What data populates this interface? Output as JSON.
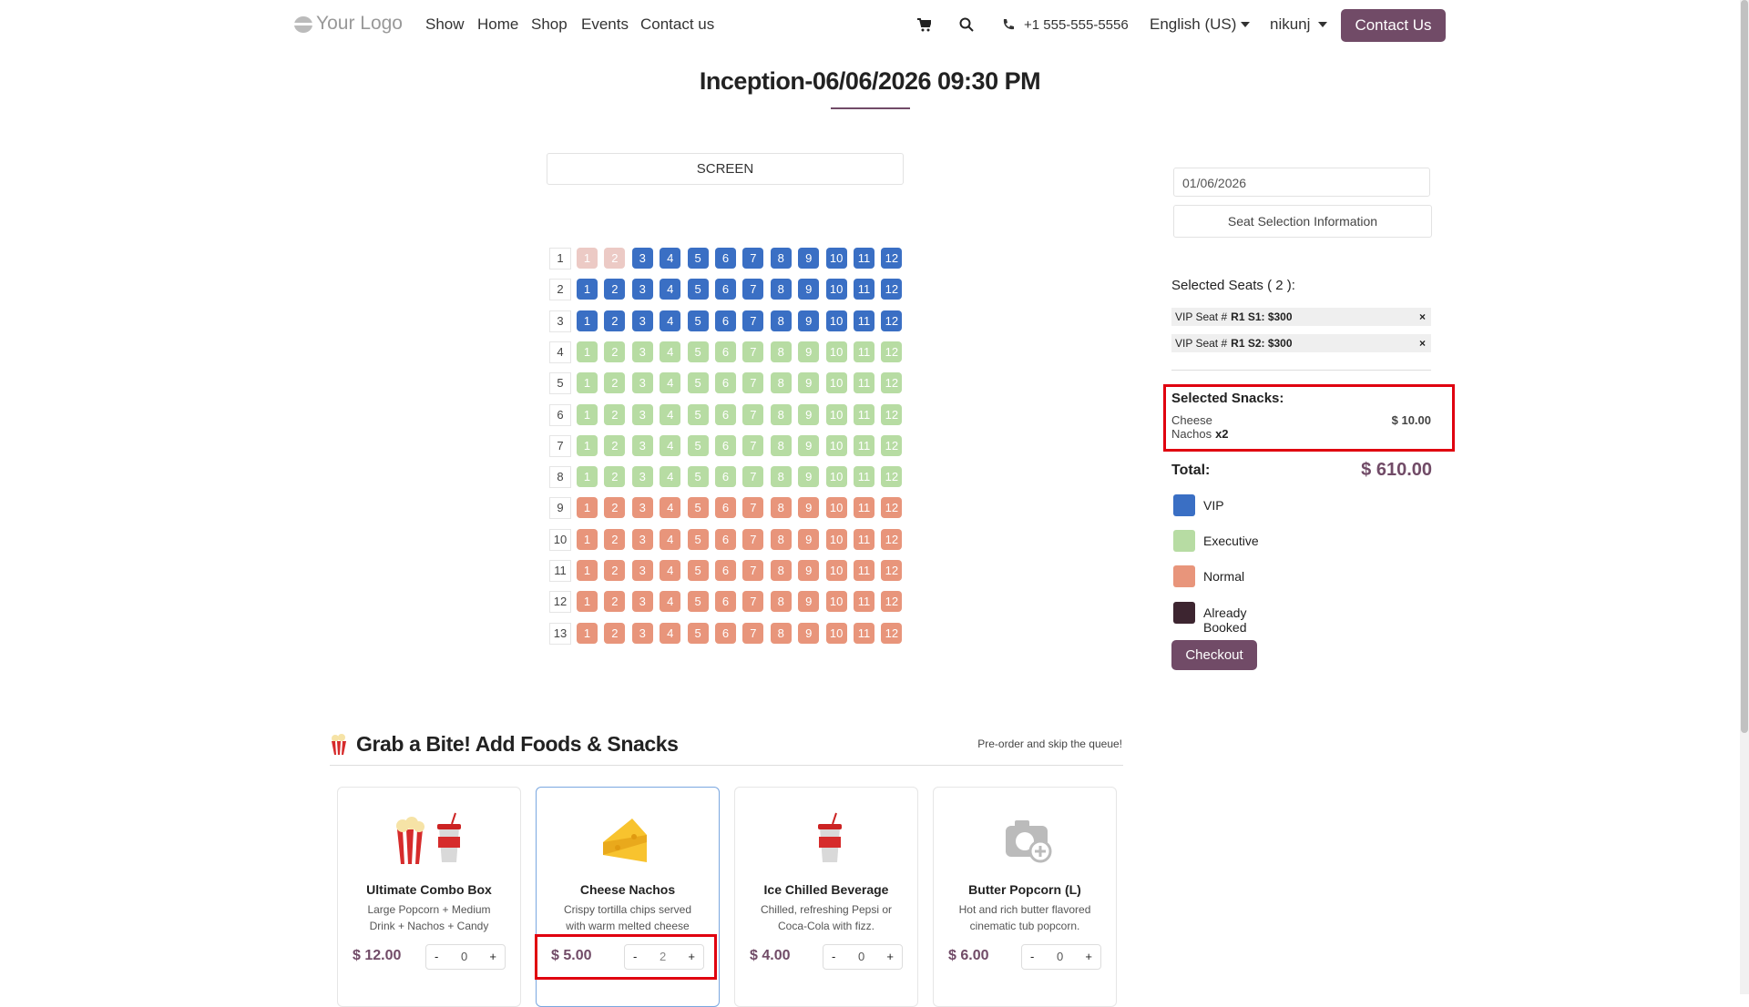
{
  "nav": {
    "logo": "Your Logo",
    "links": [
      "Show",
      "Home",
      "Shop",
      "Events",
      "Contact us"
    ],
    "phone": "+1 555-555-5556",
    "language": "English (US)",
    "user": "nikunj",
    "cta": "Contact Us"
  },
  "title": "Inception-06/06/2026 09:30 PM",
  "screen_label": "SCREEN",
  "seat_rows": [
    {
      "label": "1",
      "color": "#3a6fc4",
      "seats": [
        {
          "label": "1",
          "color": "#eccac5"
        },
        {
          "label": "2",
          "color": "#eccac5"
        },
        "3",
        "4",
        "5",
        "6",
        "7",
        "8",
        "9",
        "10",
        "11",
        "12"
      ]
    },
    {
      "label": "2",
      "color": "#3a6fc4",
      "seats": [
        "1",
        "2",
        "3",
        "4",
        "5",
        "6",
        "7",
        "8",
        "9",
        "10",
        "11",
        "12"
      ]
    },
    {
      "label": "3",
      "color": "#3a6fc4",
      "seats": [
        "1",
        "2",
        "3",
        "4",
        "5",
        "6",
        "7",
        "8",
        "9",
        "10",
        "11",
        "12"
      ]
    },
    {
      "label": "4",
      "color": "#b7dca3",
      "seats": [
        "1",
        "2",
        "3",
        "4",
        "5",
        "6",
        "7",
        "8",
        "9",
        "10",
        "11",
        "12"
      ]
    },
    {
      "label": "5",
      "color": "#b7dca3",
      "seats": [
        "1",
        "2",
        "3",
        "4",
        "5",
        "6",
        "7",
        "8",
        "9",
        "10",
        "11",
        "12"
      ]
    },
    {
      "label": "6",
      "color": "#b7dca3",
      "seats": [
        "1",
        "2",
        "3",
        "4",
        "5",
        "6",
        "7",
        "8",
        "9",
        "10",
        "11",
        "12"
      ]
    },
    {
      "label": "7",
      "color": "#b7dca3",
      "seats": [
        "1",
        "2",
        "3",
        "4",
        "5",
        "6",
        "7",
        "8",
        "9",
        "10",
        "11",
        "12"
      ]
    },
    {
      "label": "8",
      "color": "#b7dca3",
      "seats": [
        "1",
        "2",
        "3",
        "4",
        "5",
        "6",
        "7",
        "8",
        "9",
        "10",
        "11",
        "12"
      ]
    },
    {
      "label": "9",
      "color": "#e8957b",
      "seats": [
        "1",
        "2",
        "3",
        "4",
        "5",
        "6",
        "7",
        "8",
        "9",
        "10",
        "11",
        "12"
      ]
    },
    {
      "label": "10",
      "color": "#e8957b",
      "seats": [
        "1",
        "2",
        "3",
        "4",
        "5",
        "6",
        "7",
        "8",
        "9",
        "10",
        "11",
        "12"
      ]
    },
    {
      "label": "11",
      "color": "#e8957b",
      "seats": [
        "1",
        "2",
        "3",
        "4",
        "5",
        "6",
        "7",
        "8",
        "9",
        "10",
        "11",
        "12"
      ]
    },
    {
      "label": "12",
      "color": "#e8957b",
      "seats": [
        "1",
        "2",
        "3",
        "4",
        "5",
        "6",
        "7",
        "8",
        "9",
        "10",
        "11",
        "12"
      ]
    },
    {
      "label": "13",
      "color": "#e8957b",
      "seats": [
        "1",
        "2",
        "3",
        "4",
        "5",
        "6",
        "7",
        "8",
        "9",
        "10",
        "11",
        "12"
      ]
    }
  ],
  "panel": {
    "date": "01/06/2026",
    "info": "Seat Selection Information",
    "selected_seats_label": "Selected Seats ( 2 ):",
    "selected_seats": [
      {
        "prefix": "VIP Seat #",
        "seat": "R1 S1: $300"
      },
      {
        "prefix": "VIP Seat #",
        "seat": "R1 S2: $300"
      }
    ],
    "snacks_label": "Selected Snacks:",
    "snacks": [
      {
        "name": "Cheese Nachos",
        "qty": "x2",
        "price": "$ 10.00"
      }
    ],
    "total_label": "Total:",
    "total": "$ 610.00",
    "legend": [
      {
        "label": "VIP",
        "color": "#3a6fc4"
      },
      {
        "label": "Executive",
        "color": "#b7dca3"
      },
      {
        "label": "Normal",
        "color": "#e8957b"
      },
      {
        "label": "Already Booked",
        "color": "#3d2530"
      }
    ],
    "checkout": "Checkout"
  },
  "snacks_section": {
    "title": "Grab a Bite! Add Foods & Snacks",
    "subtitle": "Pre-order and skip the queue!",
    "items": [
      {
        "name": "Ultimate Combo Box",
        "description": "Large Popcorn + Medium Drink + Nachos + Candy",
        "price": "$ 12.00",
        "minus": "-",
        "qty": "0",
        "plus": "+"
      },
      {
        "name": "Cheese Nachos",
        "description": "Crispy tortilla chips served with warm melted cheese dip.",
        "price": "$ 5.00",
        "minus": "-",
        "qty": "2",
        "plus": "+"
      },
      {
        "name": "Ice Chilled Beverage",
        "description": "Chilled, refreshing Pepsi or Coca-Cola with fizz.",
        "price": "$ 4.00",
        "minus": "-",
        "qty": "0",
        "plus": "+"
      },
      {
        "name": "Butter Popcorn (L)",
        "description": "Hot and rich butter flavored cinematic tub popcorn.",
        "price": "$ 6.00",
        "minus": "-",
        "qty": "0",
        "plus": "+"
      }
    ]
  }
}
